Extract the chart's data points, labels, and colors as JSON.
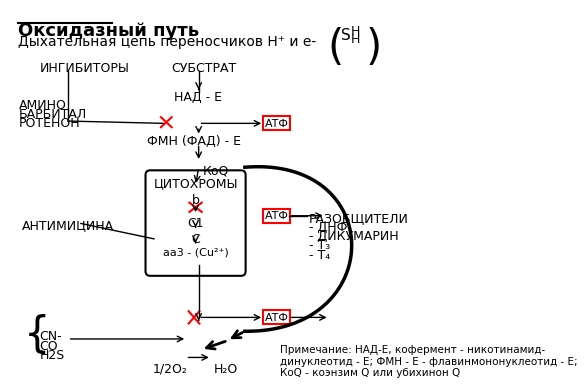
{
  "title": "Оксидазный путь",
  "subtitle": "Дыхательная цепь переносчиков Н⁺ и е-",
  "background_color": "#ffffff",
  "text_color": "#000000",
  "inhibitors_label": "ИНГИБИТОРЫ",
  "substrate_label": "СУБСТРАТ",
  "amino_labels": [
    "АМИНО",
    "БАРБИТАЛ",
    "РОТЕНОН"
  ],
  "nad_label": "НАД - Е",
  "fmn_label": "ФМН (ФАД) - Е",
  "koq_label": "КоQ",
  "cytochrome_label": "ЦИТОХРОМЫ",
  "b_label": "b",
  "c1_label": "С1",
  "c_label": "С",
  "aa3_label": "аа3 - (Cu²⁺)",
  "antimicin_label": "АНТИМИЦИНА",
  "atf_label": "АТФ",
  "razobsh_label": "РАЗОБЩИТЕЛИ",
  "dnf_label": "- ДНФ",
  "dikumarin_label": "- ДИКУМАРИН",
  "t3_label": "- Т₃",
  "t4_label": "- Т₄",
  "cn_label": "CN-",
  "co_label": "CO",
  "h2s_label": "H2S",
  "o2_label": "1/2O₂",
  "h2o_label": "H₂O",
  "note": "Примечание: НАД-Е, кофермент - никотинамид-\nдинуклеотид - Е; ФМН - Е - флавинмононуклеотид - Е;\nКоQ - коэнзим Q или убихинон Q",
  "red_color": "#ff0000",
  "box_color": "#ff0000"
}
